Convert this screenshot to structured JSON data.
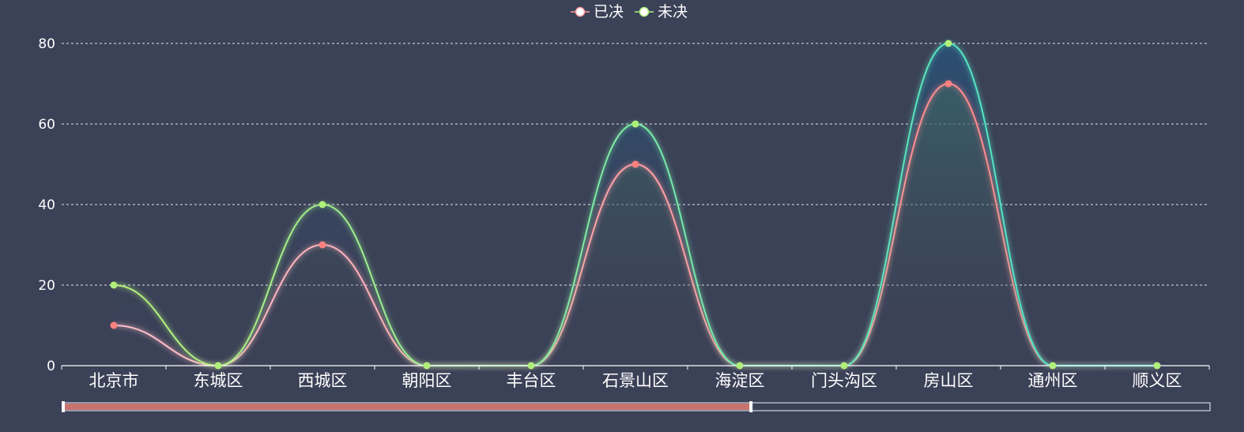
{
  "chart_data": {
    "type": "area",
    "categories": [
      "北京市",
      "东城区",
      "西城区",
      "朝阳区",
      "丰台区",
      "石景山区",
      "海淀区",
      "门头沟区",
      "房山区",
      "通州区",
      "顺义区"
    ],
    "series": [
      {
        "name": "已决",
        "values": [
          10,
          0,
          30,
          0,
          0,
          50,
          0,
          0,
          70,
          0,
          0
        ],
        "color_start": "#ffc0cb",
        "color_end": "#ff7f7f"
      },
      {
        "name": "未决",
        "values": [
          20,
          0,
          40,
          0,
          0,
          60,
          0,
          0,
          80,
          0,
          0
        ],
        "color_start": "#b8f07a",
        "color_end": "#3ee0d0"
      }
    ],
    "ylim": [
      0,
      80
    ],
    "yticks": [
      0,
      20,
      40,
      60,
      80
    ],
    "grid": true,
    "legend": "top-center",
    "smooth": true,
    "dataZoom": {
      "start": 0,
      "end": 60
    }
  },
  "colors": {
    "background": "#3b4157",
    "axis": "#ffffff",
    "grid": "#ffffff",
    "point_series0": "#ff8080",
    "point_series1": "#aef07a",
    "slider_fill": "#c8736e",
    "slider_border": "#d0d4de"
  }
}
